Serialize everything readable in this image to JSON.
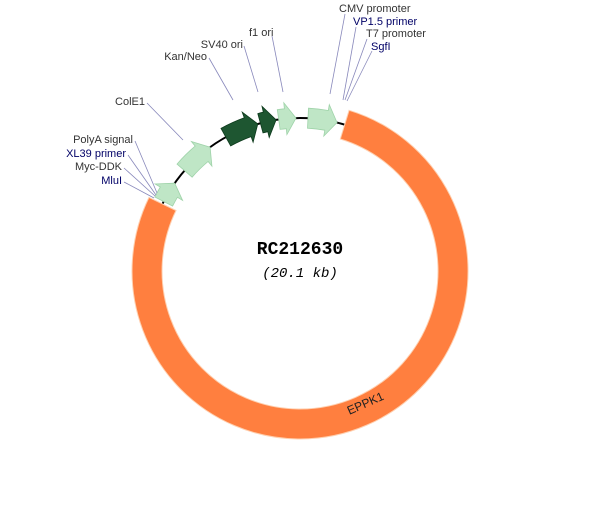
{
  "map": {
    "title": "RC212630",
    "size": "(20.1 kb)",
    "insert": "EPPK1",
    "labels": [
      "PolyA signal",
      "XL39 primer",
      "Myc-DDK",
      "MluI",
      "ColE1",
      "Kan/Neo",
      "SV40 ori",
      "f1 ori",
      "CMV promoter",
      "VP1.5 primer",
      "T7 promoter",
      "SgfI"
    ]
  }
}
